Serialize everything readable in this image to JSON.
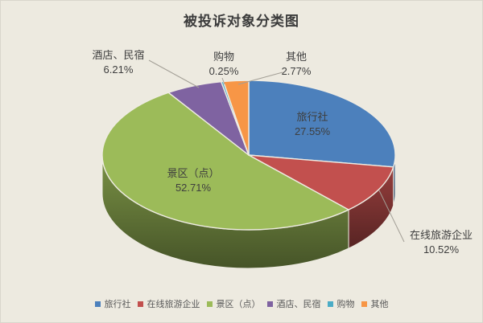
{
  "chart_data": {
    "type": "pie",
    "is_3d": true,
    "title": "被投诉对象分类图",
    "legend_position": "bottom",
    "background_color": "#EDEAE0",
    "slices": [
      {
        "label": "旅行社",
        "value": 27.55,
        "pct_label": "27.55%",
        "color": "#4C80BC",
        "label_placement": "inside"
      },
      {
        "label": "在线旅游企业",
        "value": 10.52,
        "pct_label": "10.52%",
        "color": "#C2504E",
        "label_placement": "outside"
      },
      {
        "label": "景区（点）",
        "value": 52.71,
        "pct_label": "52.71%",
        "color": "#9CBB59",
        "label_placement": "inside"
      },
      {
        "label": "酒店、民宿",
        "value": 6.21,
        "pct_label": "6.21%",
        "color": "#7F63A1",
        "label_placement": "outside"
      },
      {
        "label": "购物",
        "value": 0.25,
        "pct_label": "0.25%",
        "color": "#4BACC6",
        "label_placement": "outside"
      },
      {
        "label": "其他",
        "value": 2.77,
        "pct_label": "2.77%",
        "color": "#F79646",
        "label_placement": "outside"
      }
    ]
  }
}
